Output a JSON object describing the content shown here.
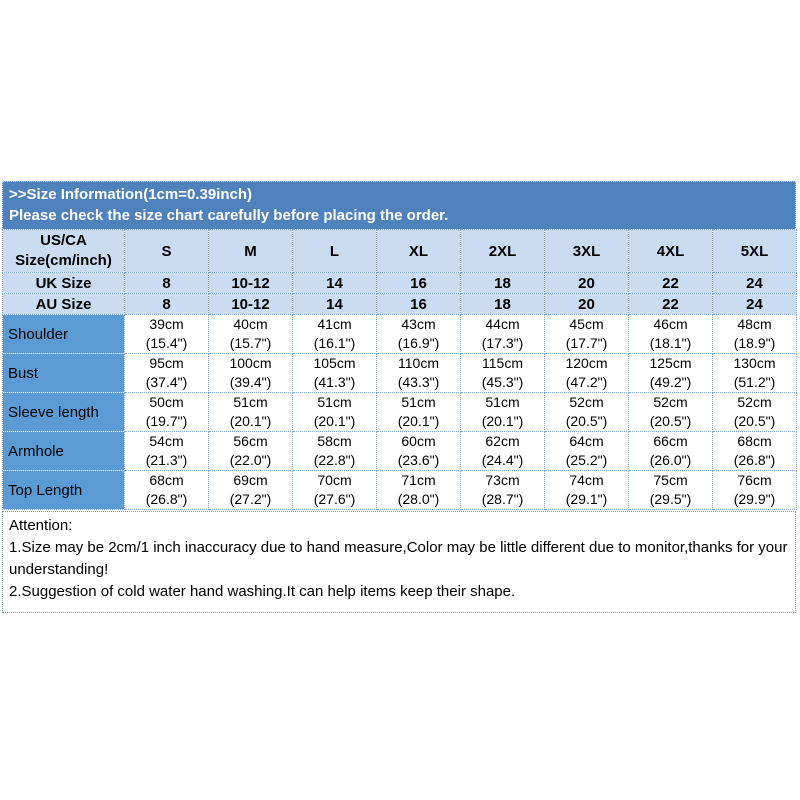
{
  "header": {
    "title_line1": ">>Size Information(1cm=0.39inch)",
    "title_line2": "Please check the size chart carefully before placing the order."
  },
  "table": {
    "corner_label_line1": "US/CA",
    "corner_label_line2": "Size(cm/inch)",
    "size_columns": [
      "S",
      "M",
      "L",
      "XL",
      "2XL",
      "3XL",
      "4XL",
      "5XL"
    ],
    "size_rows": [
      {
        "label": "UK Size",
        "values": [
          "8",
          "10-12",
          "14",
          "16",
          "18",
          "20",
          "22",
          "24"
        ]
      },
      {
        "label": "AU Size",
        "values": [
          "8",
          "10-12",
          "14",
          "16",
          "18",
          "20",
          "22",
          "24"
        ]
      }
    ],
    "measure_rows": [
      {
        "label": "Shoulder",
        "cells": [
          {
            "cm": "39cm",
            "in": "(15.4\")"
          },
          {
            "cm": "40cm",
            "in": "(15.7\")"
          },
          {
            "cm": "41cm",
            "in": "(16.1\")"
          },
          {
            "cm": "43cm",
            "in": "(16.9\")"
          },
          {
            "cm": "44cm",
            "in": "(17.3\")"
          },
          {
            "cm": "45cm",
            "in": "(17.7\")"
          },
          {
            "cm": "46cm",
            "in": "(18.1\")"
          },
          {
            "cm": "48cm",
            "in": "(18.9\")"
          }
        ]
      },
      {
        "label": "Bust",
        "cells": [
          {
            "cm": "95cm",
            "in": "(37.4\")"
          },
          {
            "cm": "100cm",
            "in": "(39.4\")"
          },
          {
            "cm": "105cm",
            "in": "(41.3\")"
          },
          {
            "cm": "110cm",
            "in": "(43.3\")"
          },
          {
            "cm": "115cm",
            "in": "(45.3\")"
          },
          {
            "cm": "120cm",
            "in": "(47.2\")"
          },
          {
            "cm": "125cm",
            "in": "(49.2\")"
          },
          {
            "cm": "130cm",
            "in": "(51.2\")"
          }
        ]
      },
      {
        "label": "Sleeve length",
        "cells": [
          {
            "cm": "50cm",
            "in": "(19.7\")"
          },
          {
            "cm": "51cm",
            "in": "(20.1\")"
          },
          {
            "cm": "51cm",
            "in": "(20.1\")"
          },
          {
            "cm": "51cm",
            "in": "(20.1\")"
          },
          {
            "cm": "51cm",
            "in": "(20.1\")"
          },
          {
            "cm": "52cm",
            "in": "(20.5\")"
          },
          {
            "cm": "52cm",
            "in": "(20.5\")"
          },
          {
            "cm": "52cm",
            "in": "(20.5\")"
          }
        ]
      },
      {
        "label": "Armhole",
        "cells": [
          {
            "cm": "54cm",
            "in": "(21.3\")"
          },
          {
            "cm": "56cm",
            "in": "(22.0\")"
          },
          {
            "cm": "58cm",
            "in": "(22.8\")"
          },
          {
            "cm": "60cm",
            "in": "(23.6\")"
          },
          {
            "cm": "62cm",
            "in": "(24.4\")"
          },
          {
            "cm": "64cm",
            "in": "(25.2\")"
          },
          {
            "cm": "66cm",
            "in": "(26.0\")"
          },
          {
            "cm": "68cm",
            "in": "(26.8\")"
          }
        ]
      },
      {
        "label": "Top Length",
        "cells": [
          {
            "cm": "68cm",
            "in": "(26.8\")"
          },
          {
            "cm": "69cm",
            "in": "(27.2\")"
          },
          {
            "cm": "70cm",
            "in": "(27.6\")"
          },
          {
            "cm": "71cm",
            "in": "(28.0\")"
          },
          {
            "cm": "73cm",
            "in": "(28.7\")"
          },
          {
            "cm": "74cm",
            "in": "(29.1\")"
          },
          {
            "cm": "75cm",
            "in": "(29.5\")"
          },
          {
            "cm": "76cm",
            "in": "(29.9\")"
          }
        ]
      }
    ]
  },
  "attention": {
    "title": "Attention:",
    "note1": "1.Size may be 2cm/1 inch inaccuracy due to hand measure,Color may be little different due to monitor,thanks for your understanding!",
    "note2": "2.Suggestion of cold water hand washing.It can help items keep their shape."
  },
  "colors": {
    "title_band": "#4f81bd",
    "label_cell": "#5b9bd5",
    "light_cell": "#c9dcf1",
    "grid_line": "#7fa7cd",
    "band_text": "#ffffff",
    "body_text": "#000000"
  }
}
